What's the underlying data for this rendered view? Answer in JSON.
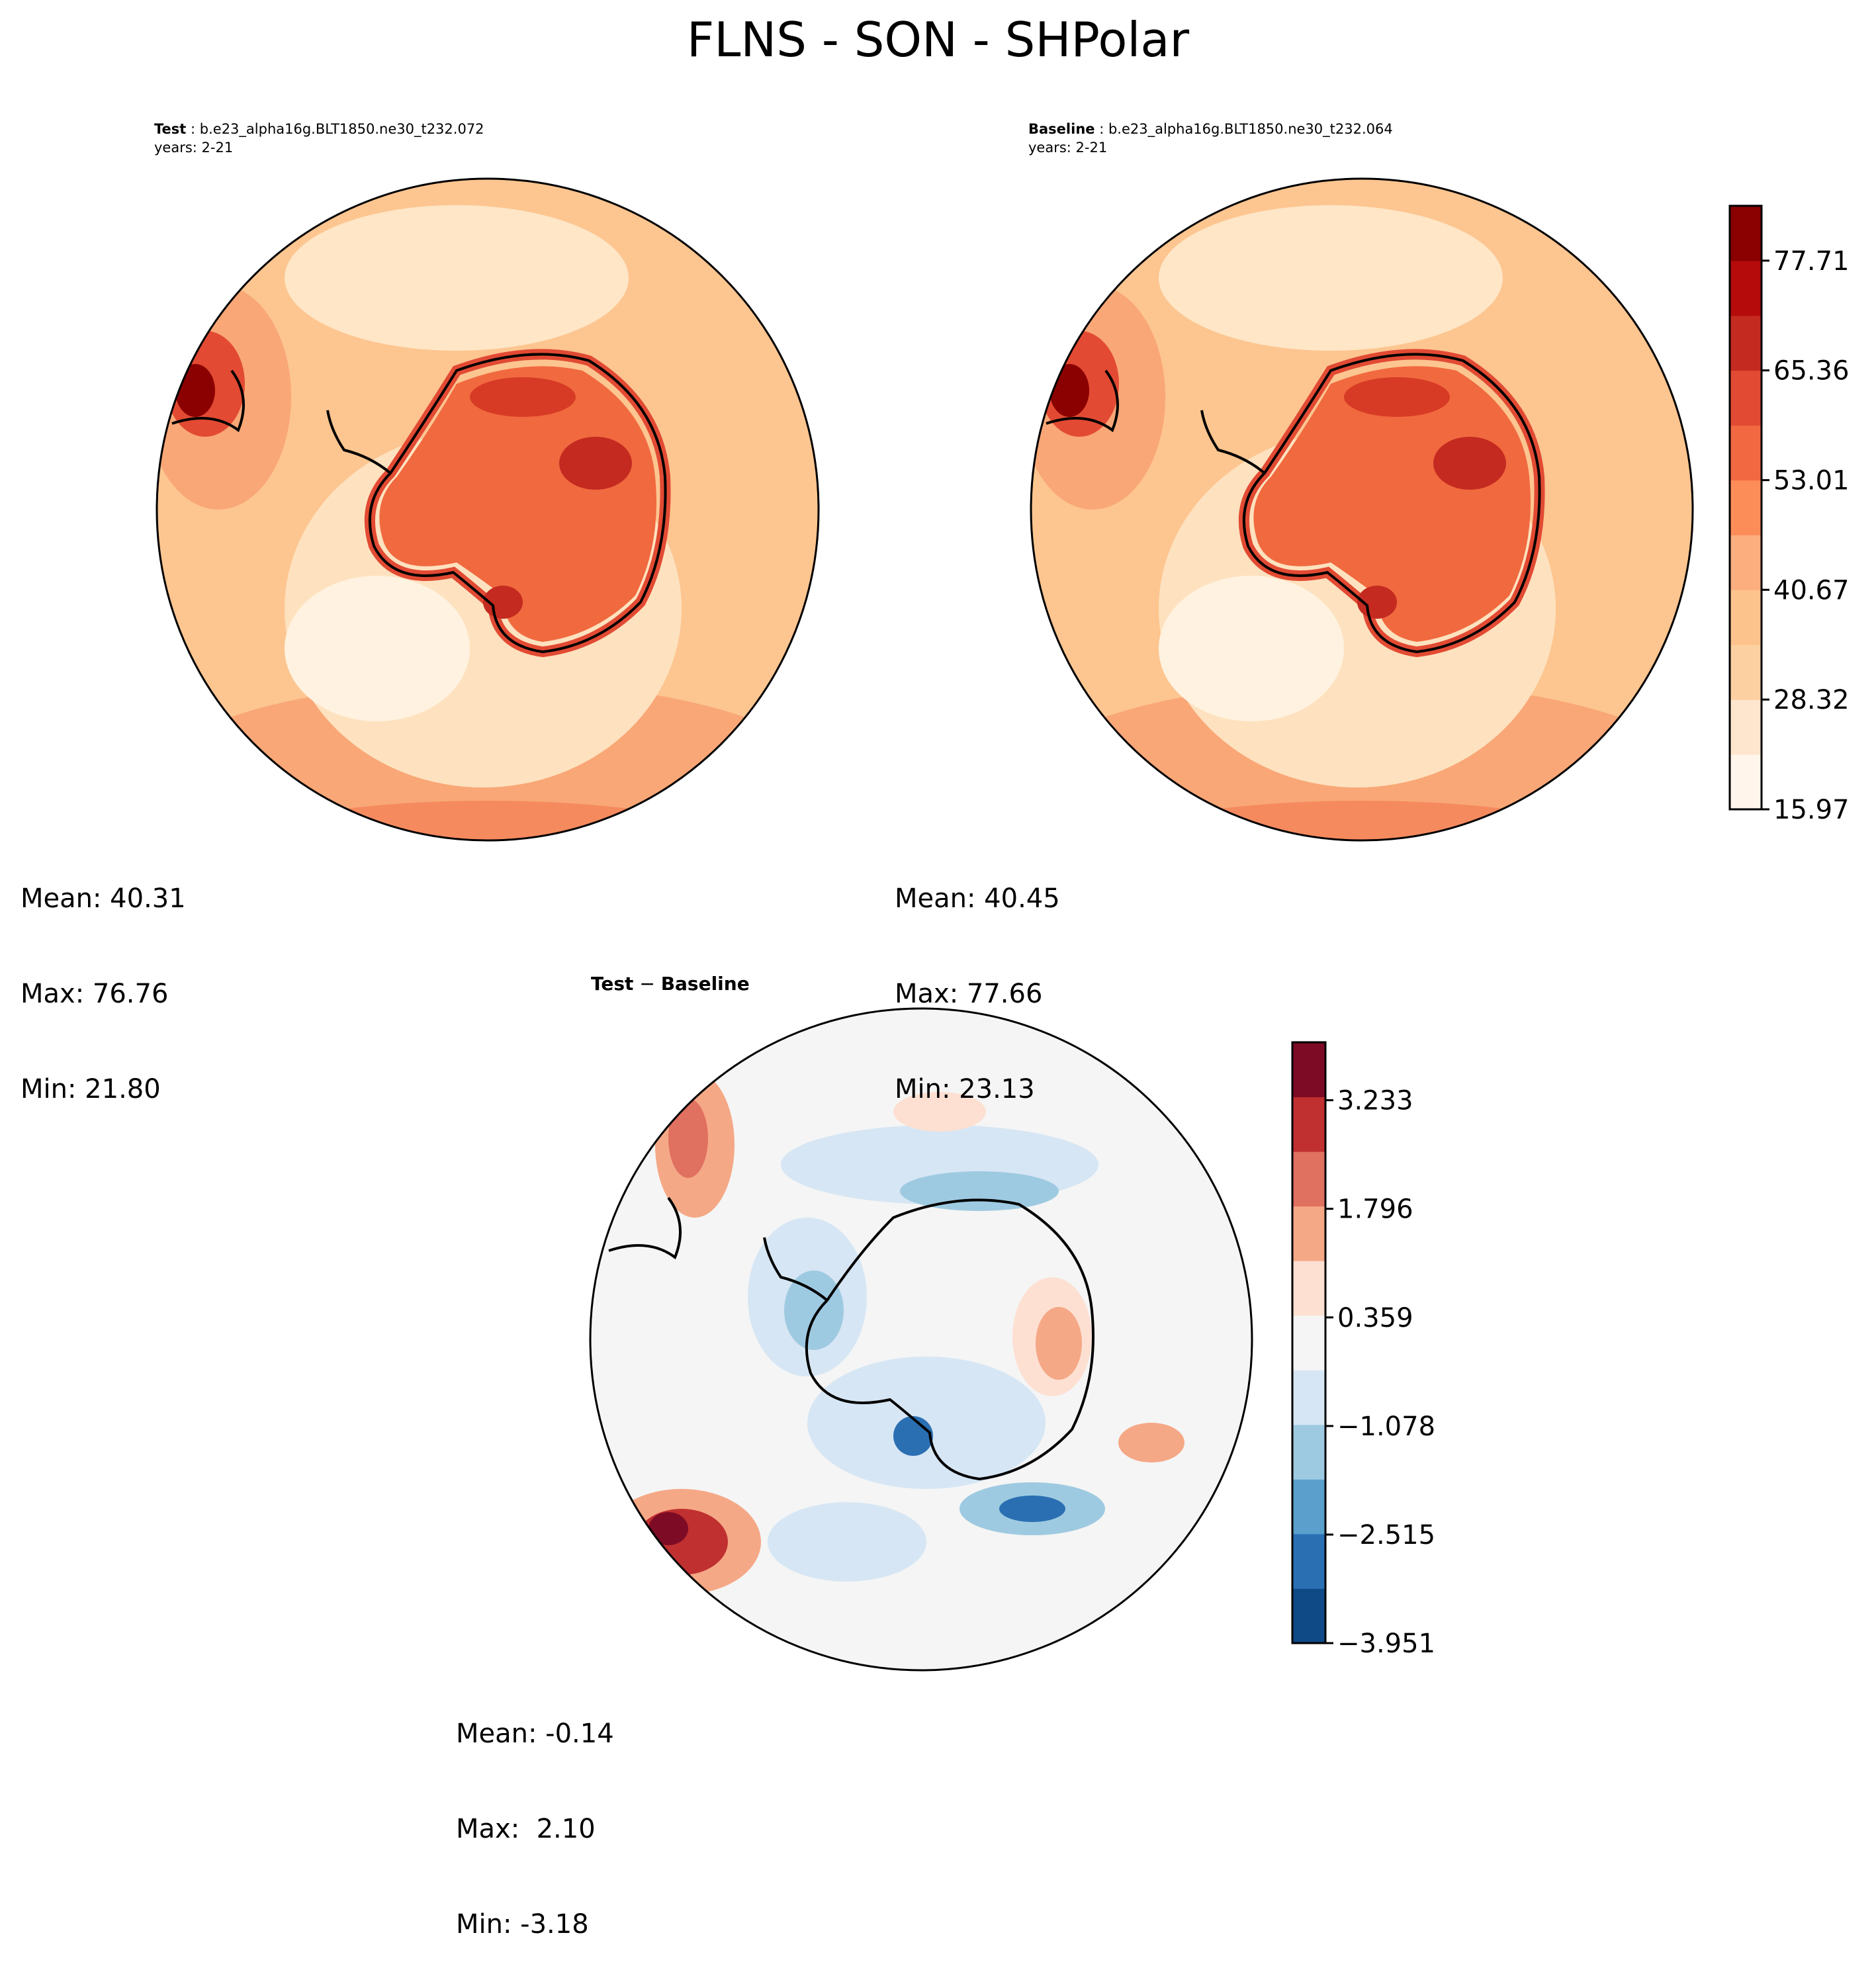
{
  "title": "FLNS - SON - SHPolar",
  "panels": {
    "test": {
      "label": "Test",
      "case": "b.e23_alpha16g.BLT1850.ne30_t232.072",
      "years": "years: 2-21",
      "mean": "Mean: 40.31",
      "max": "Max: 76.76",
      "min": "Min: 21.80"
    },
    "baseline": {
      "label": "Baseline",
      "case": "b.e23_alpha16g.BLT1850.ne30_t232.064",
      "years": "years: 2-21",
      "mean": "Mean: 40.45",
      "max": "Max: 77.66",
      "min": "Min: 23.13"
    },
    "diff": {
      "title_left": "Test",
      "title_op": " − ",
      "title_right": "Baseline",
      "mean": "Mean: -0.14",
      "max": "Max:  2.10",
      "min": "Min: -3.18"
    }
  },
  "chart_data": [
    {
      "type": "heatmap",
      "name": "Test",
      "projection": "south-polar-stereographic",
      "colormap": "Reds",
      "stats": {
        "mean": 40.31,
        "max": 76.76,
        "min": 21.8
      }
    },
    {
      "type": "heatmap",
      "name": "Baseline",
      "projection": "south-polar-stereographic",
      "colormap": "Reds",
      "stats": {
        "mean": 40.45,
        "max": 77.66,
        "min": 23.13
      }
    },
    {
      "type": "heatmap",
      "name": "Test − Baseline",
      "projection": "south-polar-stereographic",
      "colormap": "RdBu_r",
      "stats": {
        "mean": -0.14,
        "max": 2.1,
        "min": -3.18
      }
    }
  ],
  "colorbars": {
    "main": {
      "levels": [
        15.97,
        28.32,
        40.67,
        53.01,
        65.36,
        77.71
      ],
      "tick_labels": [
        "15.97",
        "28.32",
        "40.67",
        "53.01",
        "65.36",
        "77.71"
      ],
      "range": [
        15.97,
        83.88
      ],
      "colors": [
        "#fff5eb",
        "#fee6ce",
        "#fdd0a2",
        "#fdc38d",
        "#fcae7e",
        "#fc8d59",
        "#f26841",
        "#e34a33",
        "#c42a20",
        "#b50b0b",
        "#8b0000"
      ]
    },
    "diff": {
      "levels": [
        -3.951,
        -2.515,
        -1.078,
        0.359,
        1.796,
        3.233
      ],
      "tick_labels": [
        "−3.951",
        "−2.515",
        "−1.078",
        "0.359",
        "1.796",
        "3.233"
      ],
      "range": [
        -3.951,
        4.0
      ],
      "colors": [
        "#0f4a87",
        "#2b6fb3",
        "#5ba0cc",
        "#9ecae1",
        "#d6e6f4",
        "#f5f5f5",
        "#fde0d2",
        "#f5a886",
        "#e07060",
        "#c03030",
        "#7d0b25"
      ]
    }
  }
}
